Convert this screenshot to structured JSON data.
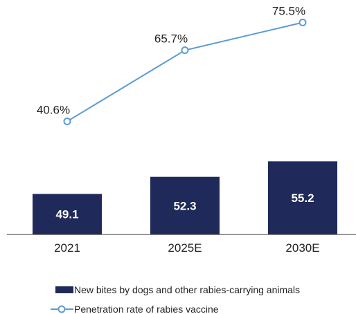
{
  "chart_data": {
    "type": "bar",
    "categories": [
      "2021",
      "2025E",
      "2030E"
    ],
    "series": [
      {
        "name": "New bites by dogs and other rabies-carrying animals",
        "type": "bar",
        "values": [
          49.1,
          52.3,
          55.2
        ],
        "labels": [
          "49.1",
          "52.3",
          "55.2"
        ],
        "color": "#1f2a5a"
      },
      {
        "name": "Penetration rate of rabies vaccine",
        "type": "line",
        "values": [
          40.6,
          65.7,
          75.5
        ],
        "labels": [
          "40.6%",
          "65.7%",
          "75.5%"
        ],
        "color": "#5b9bd5"
      }
    ],
    "title": "",
    "xlabel": "",
    "ylabel": "",
    "axis_visible": false,
    "grid": false,
    "legend_position": "bottom"
  }
}
